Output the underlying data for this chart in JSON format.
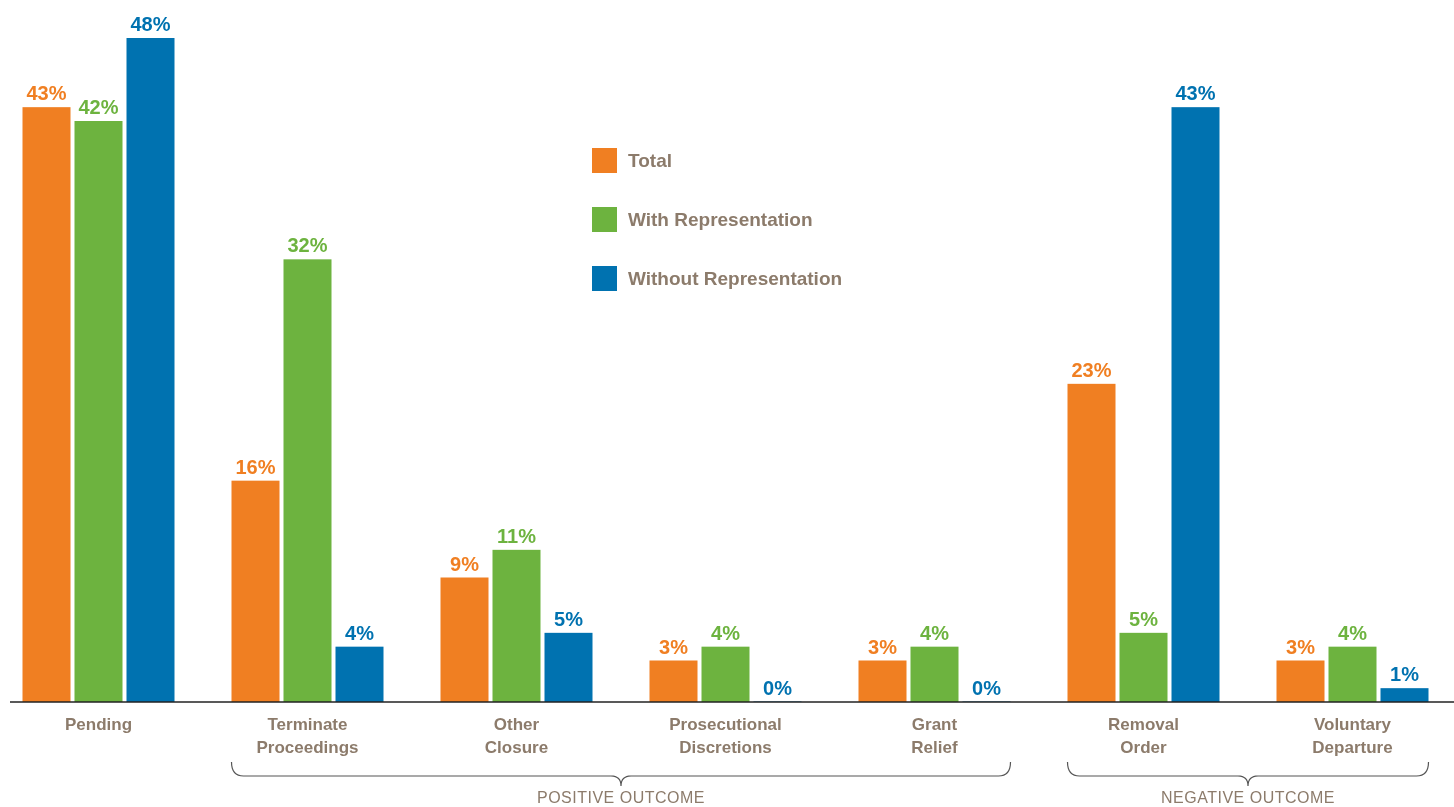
{
  "chart_data": {
    "type": "bar",
    "categories": [
      "Pending",
      "Terminate Proceedings",
      "Other Closure",
      "Prosecutional Discretions",
      "Grant Relief",
      "Removal Order",
      "Voluntary Departure"
    ],
    "series": [
      {
        "name": "Total",
        "color": "#f07f22",
        "values": [
          43,
          16,
          9,
          3,
          3,
          23,
          3
        ],
        "value_labels": [
          "43%",
          "16%",
          "9%",
          "3%",
          "3%",
          "23%",
          "3%"
        ]
      },
      {
        "name": "With Representation",
        "color": "#6db33f",
        "values": [
          42,
          32,
          11,
          4,
          4,
          5,
          4
        ],
        "value_labels": [
          "42%",
          "32%",
          "11%",
          "4%",
          "4%",
          "5%",
          "4%"
        ]
      },
      {
        "name": "Without Representation",
        "color": "#0072b0",
        "values": [
          48,
          4,
          5,
          0,
          0,
          43,
          1
        ],
        "value_labels": [
          "48%",
          "4%",
          "5%",
          "0%",
          "0%",
          "43%",
          "1%"
        ]
      }
    ],
    "legend": "top",
    "annotations": [
      "POSITIVE OUTCOME",
      "NEGATIVE OUTCOME"
    ]
  }
}
